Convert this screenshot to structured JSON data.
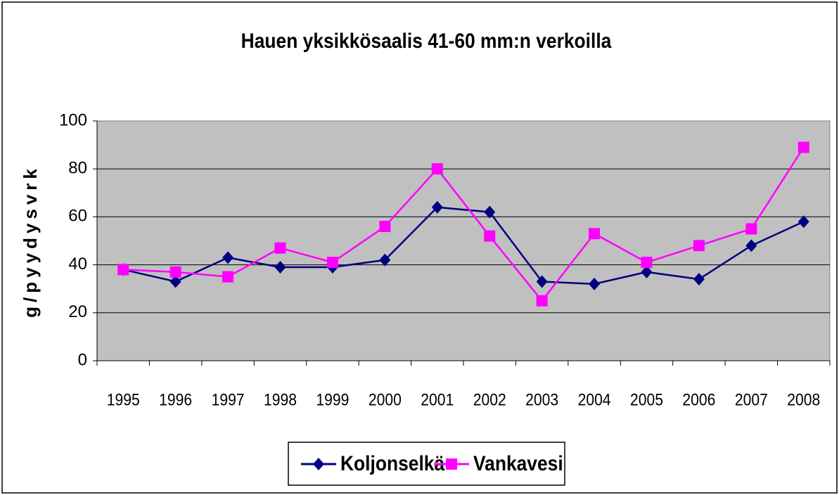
{
  "chart_data": {
    "type": "line",
    "title": "Hauen yksikkösaalis 41-60 mm:n verkoilla",
    "y_label": "g/pyydysvrk",
    "categories": [
      "1995",
      "1996",
      "1997",
      "1998",
      "1999",
      "2000",
      "2001",
      "2002",
      "2003",
      "2004",
      "2005",
      "2006",
      "2007",
      "2008"
    ],
    "series": [
      {
        "name": "Koljonselkä",
        "color": "#000080",
        "marker": "diamond",
        "values": [
          38,
          33,
          43,
          39,
          39,
          42,
          64,
          62,
          33,
          32,
          37,
          34,
          48,
          58
        ]
      },
      {
        "name": "Vankavesi",
        "color": "#ff00ff",
        "marker": "square",
        "values": [
          38,
          37,
          35,
          47,
          41,
          56,
          80,
          52,
          25,
          53,
          41,
          48,
          55,
          89
        ]
      }
    ],
    "ylim": [
      0,
      100
    ],
    "yticks": [
      0,
      20,
      40,
      60,
      80,
      100
    ],
    "grid": true,
    "legend": "bottom"
  }
}
